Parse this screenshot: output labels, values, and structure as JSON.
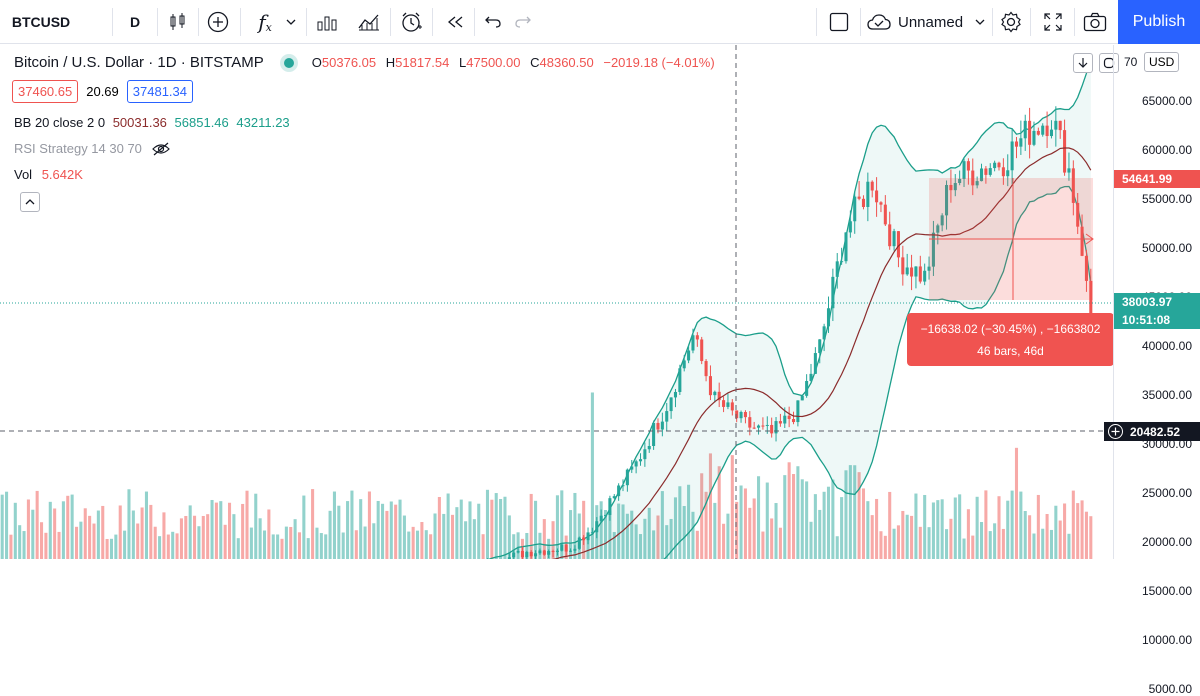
{
  "toolbar": {
    "symbol": "BTCUSD",
    "interval": "D",
    "fx_label": "f",
    "fx_sub": "x",
    "layout_name": "Unnamed",
    "publish_label": "Publish"
  },
  "legend": {
    "title": "Bitcoin / U.S. Dollar · 1D · BITSTAMP",
    "o_key": "O",
    "o_val": "50376.05",
    "h_key": "H",
    "h_val": "51817.54",
    "l_key": "L",
    "l_val": "47500.00",
    "c_key": "C",
    "c_val": "48360.50",
    "change": "−2019.18 (−4.01%)",
    "bid": "37460.65",
    "spread": "20.69",
    "ask": "37481.34"
  },
  "indicators": {
    "bb_label": "BB 20 close 2 0",
    "bb_mid": "50031.36",
    "bb_upper": "56851.46",
    "bb_lower": "43211.23",
    "rsi_label": "RSI Strategy 14 30 70",
    "vol_label": "Vol",
    "vol_value": "5.642K"
  },
  "axis": {
    "currency": "USD",
    "ticks": [
      "65000.00",
      "60000.00",
      "55000.00",
      "50000.00",
      "45000.00",
      "40000.00",
      "35000.00",
      "30000.00",
      "25000.00",
      "20000.00",
      "15000.00",
      "10000.00",
      "5000.00"
    ],
    "top_partial": "70",
    "tag_measure_top": "54641.99",
    "tag_last": "38003.97",
    "tag_countdown": "10:51:08",
    "tag_crosshair": "20482.52"
  },
  "measure": {
    "line1": "−16638.02 (−30.45%) , −1663802",
    "line2": "46 bars, 46d"
  },
  "colors": {
    "up": "#26a69a",
    "down": "#ef5350",
    "accent": "#2962ff",
    "band": "#1b9e8a",
    "basis": "#8b2c2c"
  }
}
